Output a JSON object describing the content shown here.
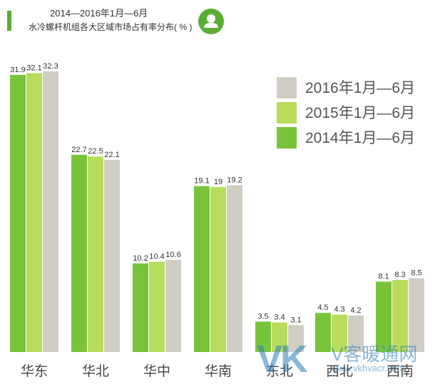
{
  "header": {
    "title_line1": "2014—2016年1月—6月",
    "title_line2": "水冷螺杆机组各大区域市场占有率分布( % )",
    "avatar_icon": "user-icon"
  },
  "colors": {
    "accent": "#5aad33",
    "series_2014": "#79c33a",
    "series_2015": "#b8dc5c",
    "series_2016": "#d0cdc4"
  },
  "watermark": {
    "logo": "VK",
    "name": "V客暖通网",
    "url": "www.vkhvacr.com"
  },
  "chart_data": {
    "type": "bar",
    "title": "2014—2016年1月—6月 水冷螺杆机组各大区域市场占有率分布( % )",
    "categories": [
      "华东",
      "华北",
      "华中",
      "华南",
      "东北",
      "西北",
      "西南"
    ],
    "series": [
      {
        "name": "2014年1月—6月",
        "values": [
          31.9,
          22.7,
          10.2,
          19.1,
          3.5,
          4.5,
          8.1
        ]
      },
      {
        "name": "2015年1月—6月",
        "values": [
          32.1,
          22.5,
          10.4,
          19,
          3.4,
          4.3,
          8.3
        ]
      },
      {
        "name": "2016年1月—6月",
        "values": [
          32.3,
          22.1,
          10.6,
          19.2,
          3.1,
          4.2,
          8.5
        ]
      }
    ],
    "value_labels": [
      [
        "31.9",
        "22.7",
        "10.2",
        "19.1",
        "3.5",
        "4.5",
        "8.1"
      ],
      [
        "32.1",
        "22.5",
        "10.4",
        "19",
        "3.4",
        "4.3",
        "8.3"
      ],
      [
        "32.3",
        "22.1",
        "10.6",
        "19.2",
        "3.1",
        "4.2",
        "8.5"
      ]
    ],
    "legend": [
      "2016年1月—6月",
      "2015年1月—6月",
      "2014年1月—6月"
    ],
    "legend_placement": "top-right",
    "xlabel": "",
    "ylabel": "",
    "ylim": [
      0,
      32.3
    ],
    "grid": false
  }
}
